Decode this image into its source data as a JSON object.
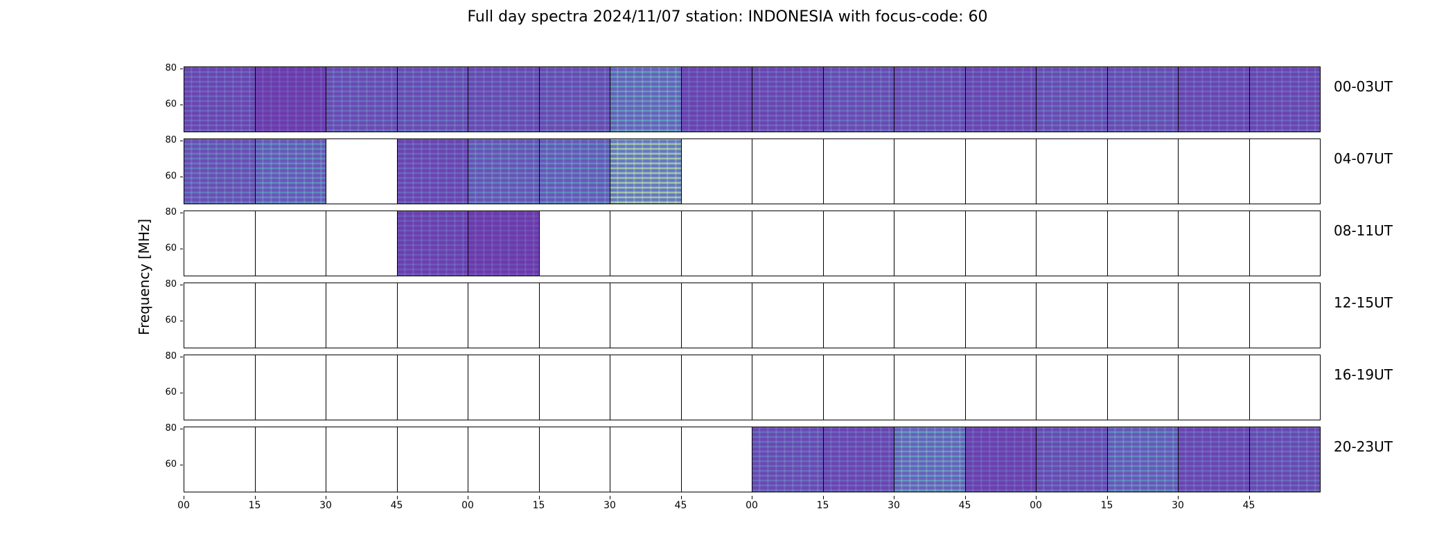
{
  "title": "Full day spectra 2024/11/07 station: INDONESIA with focus-code: 60",
  "chart_data": {
    "type": "heatmap",
    "title": "Full day spectra 2024/11/07 station: INDONESIA with focus-code: 60",
    "ylabel": "Frequency [MHz]",
    "xlabel": "",
    "ytick_labels": [
      "80",
      "60"
    ],
    "ylim": [
      45,
      81
    ],
    "xtick_labels": [
      "00",
      "15",
      "30",
      "45",
      "00",
      "15",
      "30",
      "45",
      "00",
      "15",
      "30",
      "45",
      "00",
      "15",
      "30",
      "45"
    ],
    "colormap": "viridis",
    "panels_per_row": 16,
    "rows": [
      {
        "label": "00-03UT",
        "filled": [
          1,
          1,
          1,
          1,
          1,
          1,
          1,
          1,
          1,
          1,
          1,
          1,
          1,
          1,
          1,
          1
        ]
      },
      {
        "label": "04-07UT",
        "filled": [
          1,
          1,
          0,
          1,
          1,
          1,
          1,
          0,
          0,
          0,
          0,
          0,
          0,
          0,
          0,
          0
        ]
      },
      {
        "label": "08-11UT",
        "filled": [
          0,
          0,
          0,
          1,
          1,
          0,
          0,
          0,
          0,
          0,
          0,
          0,
          0,
          0,
          0,
          0
        ]
      },
      {
        "label": "12-15UT",
        "filled": [
          0,
          0,
          0,
          0,
          0,
          0,
          0,
          0,
          0,
          0,
          0,
          0,
          0,
          0,
          0,
          0
        ]
      },
      {
        "label": "16-19UT",
        "filled": [
          0,
          0,
          0,
          0,
          0,
          0,
          0,
          0,
          0,
          0,
          0,
          0,
          0,
          0,
          0,
          0
        ]
      },
      {
        "label": "20-23UT",
        "filled": [
          0,
          0,
          0,
          0,
          0,
          0,
          0,
          0,
          1,
          1,
          1,
          1,
          1,
          1,
          1,
          1
        ]
      }
    ],
    "intensity": [
      [
        0.25,
        0.15,
        0.3,
        0.3,
        0.28,
        0.3,
        0.55,
        0.22,
        0.25,
        0.3,
        0.28,
        0.25,
        0.3,
        0.3,
        0.25,
        0.25
      ],
      [
        0.35,
        0.45,
        0,
        0.25,
        0.4,
        0.45,
        0.85,
        0,
        0,
        0,
        0,
        0,
        0,
        0,
        0,
        0
      ],
      [
        0,
        0,
        0,
        0.2,
        0.15,
        0,
        0,
        0,
        0,
        0,
        0,
        0,
        0,
        0,
        0,
        0
      ],
      [
        0,
        0,
        0,
        0,
        0,
        0,
        0,
        0,
        0,
        0,
        0,
        0,
        0,
        0,
        0,
        0
      ],
      [
        0,
        0,
        0,
        0,
        0,
        0,
        0,
        0,
        0,
        0,
        0,
        0,
        0,
        0,
        0,
        0
      ],
      [
        0,
        0,
        0,
        0,
        0,
        0,
        0,
        0,
        0.3,
        0.25,
        0.55,
        0.2,
        0.3,
        0.45,
        0.25,
        0.28
      ]
    ]
  }
}
